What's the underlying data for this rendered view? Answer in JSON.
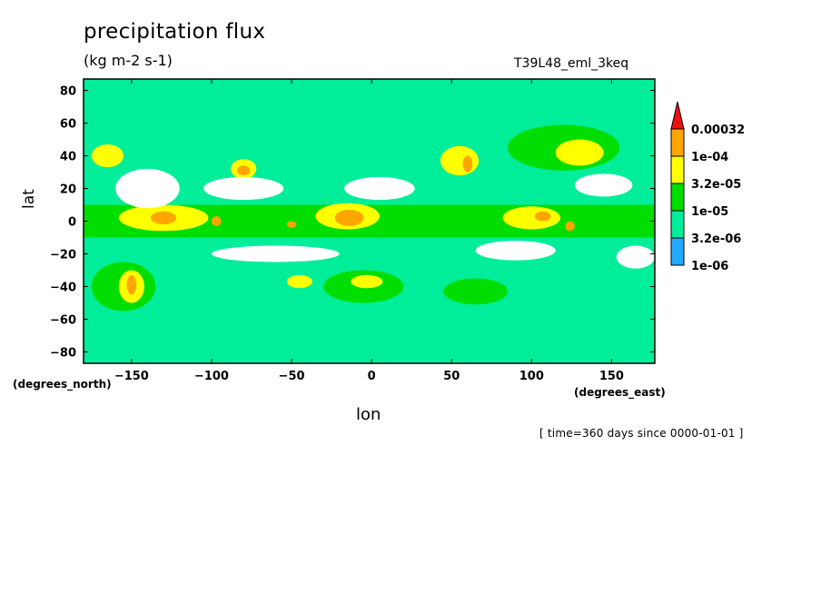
{
  "header": {
    "title": "precipitation flux",
    "units": "(kg m-2 s-1)",
    "run_id": "T39L48_eml_3keq"
  },
  "axes": {
    "x_label": "lon",
    "y_label": "lat",
    "y_units_note": "(degrees_north)",
    "x_units_note": "(degrees_east)"
  },
  "footer": {
    "time_note": "[ time=360 days since 0000-01-01 ]"
  },
  "chart_data": {
    "type": "heatmap",
    "title": "precipitation flux",
    "subtitle": "(kg m-2 s-1)",
    "xlabel": "lon",
    "ylabel": "lat",
    "xlim": [
      -180,
      177
    ],
    "ylim": [
      -87,
      87
    ],
    "x_ticks": [
      -150,
      -100,
      -50,
      0,
      50,
      100,
      150
    ],
    "y_ticks": [
      80,
      60,
      40,
      20,
      0,
      -20,
      -40,
      -60,
      -80
    ],
    "colorbar": {
      "labels": [
        "0.00032",
        "1e-04",
        "3.2e-05",
        "1e-05",
        "3.2e-06",
        "1e-06"
      ],
      "bins": [
        {
          "min": 0.00032,
          "max": null,
          "color": "#ee1111"
        },
        {
          "min": 0.0001,
          "max": 0.00032,
          "color": "#ffa500"
        },
        {
          "min": 3.2e-05,
          "max": 0.0001,
          "color": "#ffff00"
        },
        {
          "min": 1e-05,
          "max": 3.2e-05,
          "color": "#00dd00"
        },
        {
          "min": 3.2e-06,
          "max": 1e-05,
          "color": "#00ee99"
        },
        {
          "min": 1e-06,
          "max": 3.2e-06,
          "color": "#22aaff"
        }
      ],
      "below_min_color": "#ffffff"
    },
    "features": [
      {
        "kind": "band",
        "level": 3,
        "lat_min": -10,
        "lat_max": 10,
        "lon_min": -180,
        "lon_max": 177
      },
      {
        "kind": "blob",
        "level": 4,
        "lon": -130,
        "lat": 2,
        "rx": 28,
        "ry": 8
      },
      {
        "kind": "blob",
        "level": 4,
        "lon": -15,
        "lat": 3,
        "rx": 20,
        "ry": 8
      },
      {
        "kind": "blob",
        "level": 4,
        "lon": 100,
        "lat": 2,
        "rx": 18,
        "ry": 7
      },
      {
        "kind": "blob",
        "level": 5,
        "lon": -130,
        "lat": 2,
        "rx": 8,
        "ry": 4
      },
      {
        "kind": "blob",
        "level": 5,
        "lon": -14,
        "lat": 2,
        "rx": 9,
        "ry": 5
      },
      {
        "kind": "blob",
        "level": 5,
        "lon": 107,
        "lat": 3,
        "rx": 5,
        "ry": 3
      },
      {
        "kind": "blob",
        "level": 5,
        "lon": 124,
        "lat": -3,
        "rx": 3,
        "ry": 3
      },
      {
        "kind": "blob",
        "level": 5,
        "lon": -97,
        "lat": 0,
        "rx": 3,
        "ry": 3
      },
      {
        "kind": "blob",
        "level": 5,
        "lon": -50,
        "lat": -2,
        "rx": 3,
        "ry": 2
      },
      {
        "kind": "blob",
        "level": 4,
        "lon": -165,
        "lat": 40,
        "rx": 10,
        "ry": 7
      },
      {
        "kind": "blob",
        "level": 4,
        "lon": -80,
        "lat": 32,
        "rx": 8,
        "ry": 6
      },
      {
        "kind": "blob",
        "level": 5,
        "lon": -80,
        "lat": 31,
        "rx": 4,
        "ry": 3
      },
      {
        "kind": "blob",
        "level": 4,
        "lon": 55,
        "lat": 37,
        "rx": 12,
        "ry": 9
      },
      {
        "kind": "blob",
        "level": 5,
        "lon": 60,
        "lat": 35,
        "rx": 3,
        "ry": 5
      },
      {
        "kind": "blob",
        "level": 3,
        "lon": 120,
        "lat": 45,
        "rx": 35,
        "ry": 14
      },
      {
        "kind": "blob",
        "level": 4,
        "lon": 130,
        "lat": 42,
        "rx": 15,
        "ry": 8
      },
      {
        "kind": "blob",
        "level": 3,
        "lon": -155,
        "lat": -40,
        "rx": 20,
        "ry": 15
      },
      {
        "kind": "blob",
        "level": 4,
        "lon": -150,
        "lat": -40,
        "rx": 8,
        "ry": 10
      },
      {
        "kind": "blob",
        "level": 5,
        "lon": -150,
        "lat": -39,
        "rx": 3,
        "ry": 6
      },
      {
        "kind": "blob",
        "level": 3,
        "lon": -5,
        "lat": -40,
        "rx": 25,
        "ry": 10
      },
      {
        "kind": "blob",
        "level": 4,
        "lon": -3,
        "lat": -37,
        "rx": 10,
        "ry": 4
      },
      {
        "kind": "blob",
        "level": 3,
        "lon": 65,
        "lat": -43,
        "rx": 20,
        "ry": 8
      },
      {
        "kind": "blob",
        "level": 4,
        "lon": -45,
        "lat": -37,
        "rx": 8,
        "ry": 4
      },
      {
        "kind": "blob",
        "level": 0,
        "lon": -140,
        "lat": 20,
        "rx": 20,
        "ry": 12
      },
      {
        "kind": "blob",
        "level": 0,
        "lon": -80,
        "lat": 20,
        "rx": 25,
        "ry": 7
      },
      {
        "kind": "blob",
        "level": 0,
        "lon": 5,
        "lat": 20,
        "rx": 22,
        "ry": 7
      },
      {
        "kind": "blob",
        "level": 0,
        "lon": 145,
        "lat": 22,
        "rx": 18,
        "ry": 7
      },
      {
        "kind": "blob",
        "level": 0,
        "lon": -60,
        "lat": -20,
        "rx": 40,
        "ry": 5
      },
      {
        "kind": "blob",
        "level": 0,
        "lon": 90,
        "lat": -18,
        "rx": 25,
        "ry": 6
      },
      {
        "kind": "blob",
        "level": 0,
        "lon": 165,
        "lat": -22,
        "rx": 12,
        "ry": 7
      }
    ]
  }
}
